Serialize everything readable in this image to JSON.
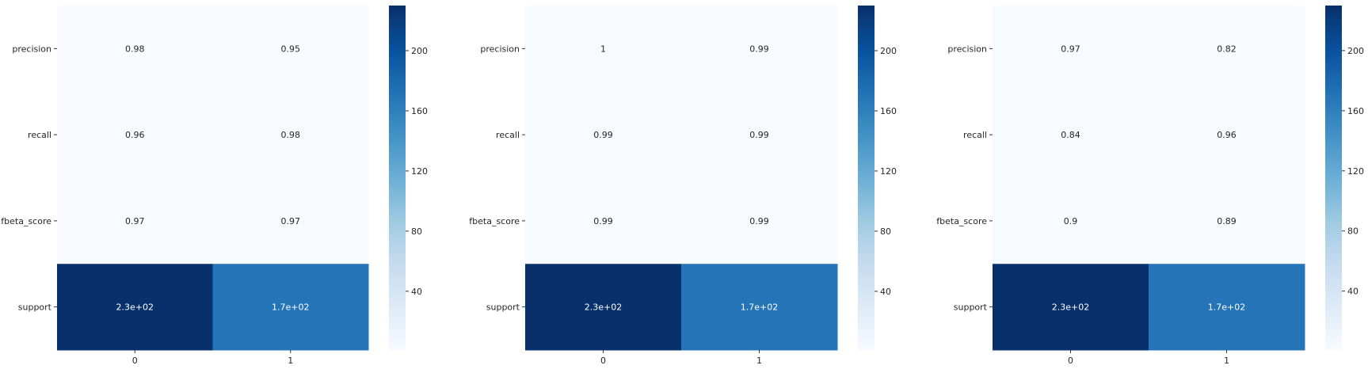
{
  "colormap": {
    "name": "Blues",
    "stops": [
      "#f7fbff",
      "#deebf7",
      "#c6dbef",
      "#9ecae1",
      "#6baed6",
      "#4292c6",
      "#2171b5",
      "#08519c",
      "#08306b"
    ]
  },
  "text_colors": {
    "light_cell": "#262626",
    "dark_cell": "#ffffff"
  },
  "chart_data": [
    {
      "type": "heatmap",
      "row_labels": [
        "precision",
        "recall",
        "fbeta_score",
        "support"
      ],
      "col_labels": [
        "0",
        "1"
      ],
      "values": [
        [
          0.98,
          0.95
        ],
        [
          0.96,
          0.98
        ],
        [
          0.97,
          0.97
        ],
        [
          230,
          170
        ]
      ],
      "annotations": [
        [
          "0.98",
          "0.95"
        ],
        [
          "0.96",
          "0.98"
        ],
        [
          "0.97",
          "0.97"
        ],
        [
          "2.3e+02",
          "1.7e+02"
        ]
      ],
      "color_range": [
        0.95,
        230
      ],
      "colorbar_ticks": [
        "40",
        "80",
        "120",
        "160",
        "200"
      ]
    },
    {
      "type": "heatmap",
      "row_labels": [
        "precision",
        "recall",
        "fbeta_score",
        "support"
      ],
      "col_labels": [
        "0",
        "1"
      ],
      "values": [
        [
          1,
          0.99
        ],
        [
          0.99,
          0.99
        ],
        [
          0.99,
          0.99
        ],
        [
          230,
          170
        ]
      ],
      "annotations": [
        [
          "1",
          "0.99"
        ],
        [
          "0.99",
          "0.99"
        ],
        [
          "0.99",
          "0.99"
        ],
        [
          "2.3e+02",
          "1.7e+02"
        ]
      ],
      "color_range": [
        0.99,
        230
      ],
      "colorbar_ticks": [
        "40",
        "80",
        "120",
        "160",
        "200"
      ]
    },
    {
      "type": "heatmap",
      "row_labels": [
        "precision",
        "recall",
        "fbeta_score",
        "support"
      ],
      "col_labels": [
        "0",
        "1"
      ],
      "values": [
        [
          0.97,
          0.82
        ],
        [
          0.84,
          0.96
        ],
        [
          0.9,
          0.89
        ],
        [
          230,
          170
        ]
      ],
      "annotations": [
        [
          "0.97",
          "0.82"
        ],
        [
          "0.84",
          "0.96"
        ],
        [
          "0.9",
          "0.89"
        ],
        [
          "2.3e+02",
          "1.7e+02"
        ]
      ],
      "color_range": [
        0.82,
        230
      ],
      "colorbar_ticks": [
        "40",
        "80",
        "120",
        "160",
        "200"
      ]
    }
  ]
}
